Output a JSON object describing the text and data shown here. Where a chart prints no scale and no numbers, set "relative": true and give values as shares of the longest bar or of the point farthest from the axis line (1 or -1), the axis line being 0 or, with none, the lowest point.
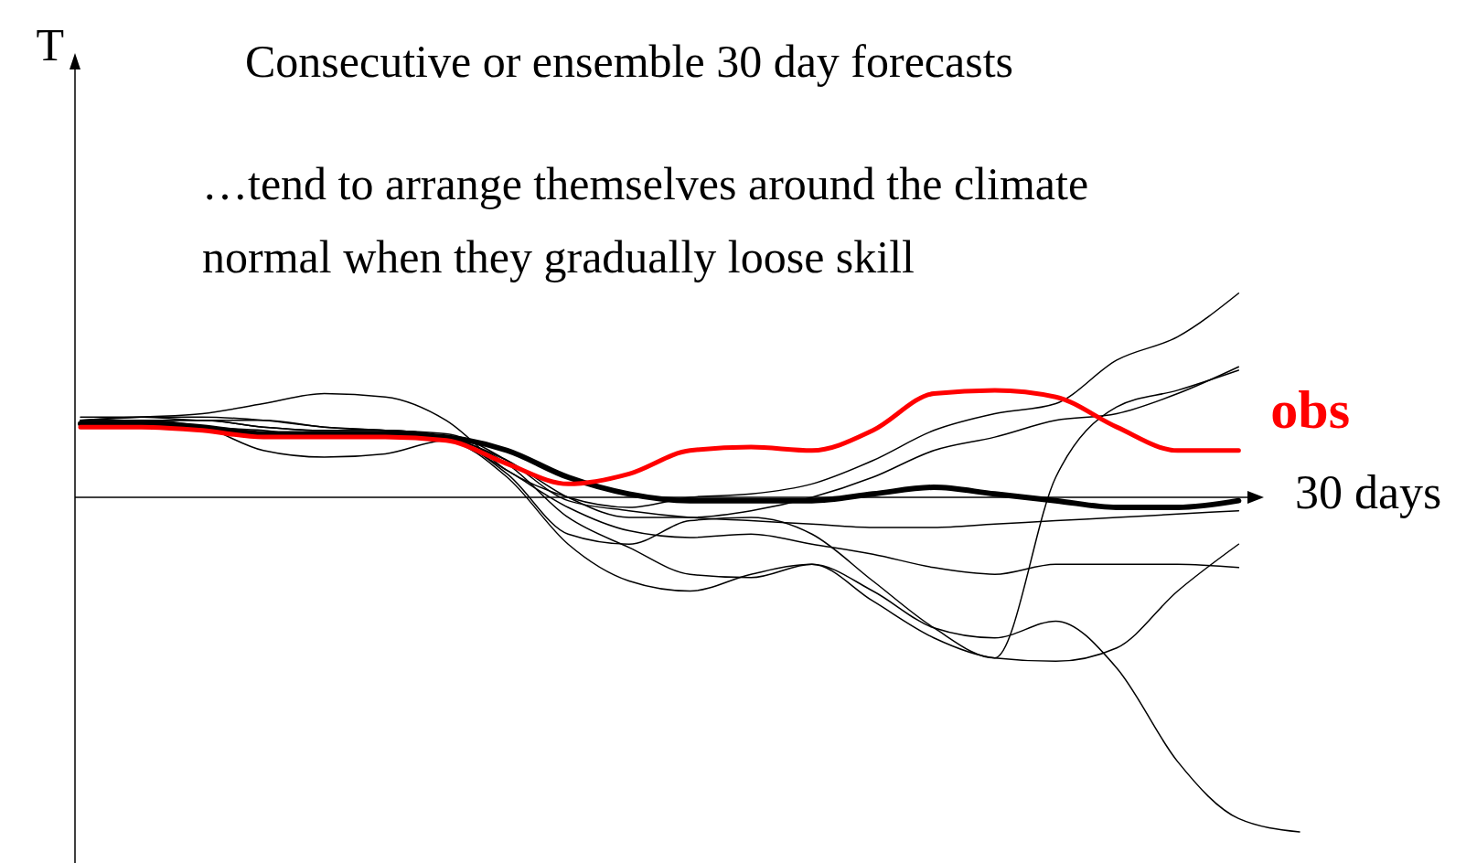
{
  "chart_data": {
    "type": "line",
    "title": "Consecutive or ensemble 30 day forecasts",
    "xlabel": "30 days",
    "ylabel": "T",
    "relative": true,
    "annotations": [
      "…tend to arrange themselves around the climate normal when they gradually loose skill"
    ],
    "categories": [
      null,
      null,
      null,
      null,
      null,
      null,
      null,
      null,
      null,
      null,
      null,
      null,
      null,
      null,
      null,
      null,
      null,
      null,
      null,
      null,
      null
    ],
    "series": [
      {
        "color": "#000000",
        "values": [
          0.23,
          0.24,
          0.25,
          0.28,
          0.31,
          0.3,
          0.23,
          0.08,
          0,
          -0.03,
          0,
          0.01,
          0.04,
          0.11,
          0.2,
          0.25,
          0.28,
          0.41,
          0.48,
          0.61,
          null
        ]
      },
      {
        "color": "#000000",
        "values": [
          0.23,
          0.24,
          0.24,
          0.23,
          0.21,
          0.2,
          0.18,
          0.11,
          0,
          -0.06,
          -0.06,
          -0.04,
          0,
          0.06,
          0.14,
          0.18,
          0.23,
          0.25,
          0.31,
          0.39,
          null
        ]
      },
      {
        "color": "#000000",
        "values": [
          0.23,
          0.23,
          0.21,
          0.2,
          0.18,
          0.18,
          0.17,
          0.06,
          -0.14,
          -0.25,
          -0.28,
          -0.23,
          -0.2,
          -0.28,
          -0.39,
          -0.42,
          -0.37,
          -0.51,
          -0.79,
          -0.96,
          -1
        ]
      },
      {
        "color": "#000000",
        "values": [
          0.23,
          0.23,
          0.21,
          0.14,
          0.12,
          0.13,
          0.17,
          0.07,
          -0.11,
          -0.14,
          -0.07,
          -0.06,
          -0.11,
          -0.25,
          -0.39,
          -0.48,
          0.06,
          0.27,
          0.32,
          0.38,
          null
        ]
      },
      {
        "color": "#000000",
        "values": [
          0.23,
          0.23,
          0.23,
          0.21,
          0.2,
          0.2,
          0.18,
          0.08,
          -0.03,
          -0.1,
          -0.12,
          -0.11,
          -0.14,
          -0.17,
          -0.21,
          -0.23,
          -0.2,
          -0.2,
          -0.2,
          -0.21,
          null
        ]
      },
      {
        "color": "#000000",
        "values": [
          0.24,
          0.24,
          0.23,
          0.23,
          0.21,
          0.2,
          0.19,
          0.11,
          -0.01,
          -0.04,
          -0.06,
          -0.07,
          -0.08,
          -0.09,
          -0.09,
          -0.08,
          -0.07,
          -0.06,
          -0.05,
          -0.04,
          null
        ]
      },
      {
        "color": "#000000",
        "values": [
          0.23,
          0.23,
          0.23,
          0.21,
          0.2,
          0.2,
          0.18,
          0.1,
          -0.06,
          -0.15,
          -0.23,
          -0.24,
          -0.2,
          -0.31,
          -0.42,
          -0.48,
          -0.49,
          -0.45,
          -0.28,
          -0.14,
          null
        ]
      },
      {
        "color": "#000000",
        "values": [
          0.22,
          0.22,
          0.21,
          0.19,
          0.19,
          0.19,
          0.18,
          0.14,
          0.06,
          0.01,
          -0.01,
          -0.01,
          -0.01,
          0.01,
          0.03,
          0.01,
          -0.01,
          -0.03,
          -0.03,
          -0.01,
          null
        ]
      },
      {
        "name": "obs",
        "color": "#ff0000",
        "values": [
          0.21,
          0.21,
          0.2,
          0.18,
          0.18,
          0.18,
          0.17,
          0.1,
          0.04,
          0.07,
          0.14,
          0.15,
          0.14,
          0.2,
          0.31,
          0.32,
          0.3,
          0.21,
          0.14,
          0.14,
          null
        ]
      }
    ]
  }
}
